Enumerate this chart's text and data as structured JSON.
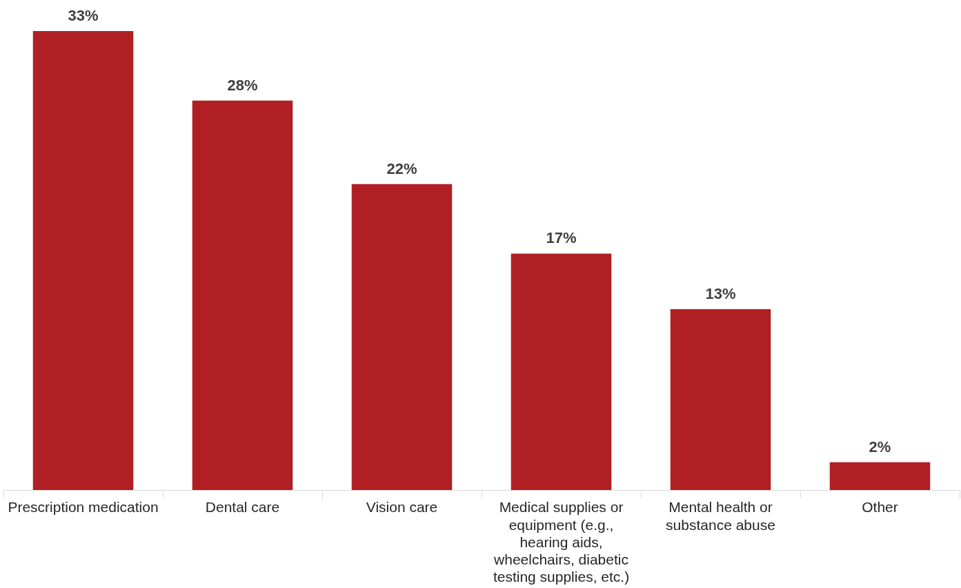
{
  "chart_data": {
    "type": "bar",
    "categories": [
      "Prescription medication",
      "Dental care",
      "Vision care",
      "Medical supplies or equipment (e.g., hearing aids, wheelchairs, diabetic testing supplies, etc.)",
      "Mental health or substance abuse",
      "Other"
    ],
    "values": [
      33,
      28,
      22,
      17,
      13,
      2
    ],
    "value_labels": [
      "33%",
      "28%",
      "22%",
      "17%",
      "13%",
      "2%"
    ],
    "color": "#b01f24",
    "grid": false,
    "legend": false
  }
}
